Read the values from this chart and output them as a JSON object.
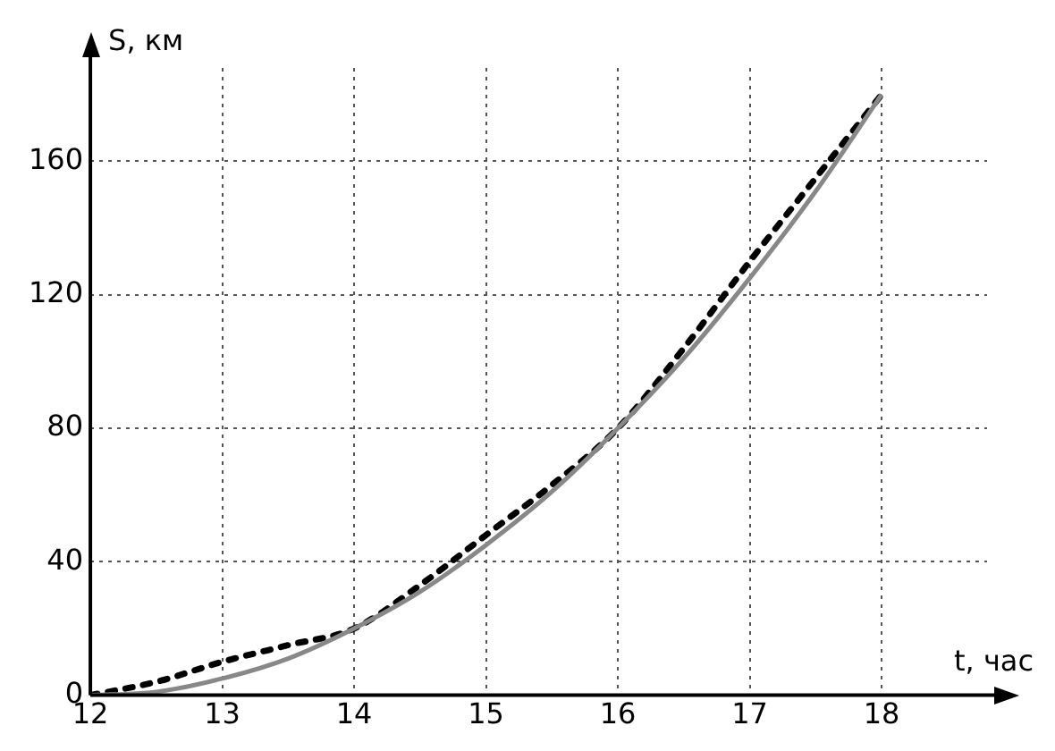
{
  "chart_data": {
    "type": "line",
    "xlabel": "t, час",
    "ylabel": "S, км",
    "x": [
      12,
      12.5,
      13,
      13.5,
      14,
      14.5,
      15,
      15.5,
      16,
      16.5,
      17,
      17.5,
      18
    ],
    "series": [
      {
        "color": "#888888",
        "line_style": "solid",
        "values": [
          0,
          1,
          5,
          11,
          20,
          31,
          45,
          61,
          80,
          101,
          125,
          151,
          180
        ]
      },
      {
        "color": "#000000",
        "line_style": "dotted",
        "values": [
          0,
          4,
          10,
          15,
          20,
          33,
          48,
          63,
          80,
          104,
          130,
          155,
          180
        ]
      }
    ],
    "xlim": [
      12,
      18.8
    ],
    "ylim": [
      0,
      188
    ],
    "xticks": [
      12,
      13,
      14,
      15,
      16,
      17,
      18
    ],
    "yticks": [
      0,
      40,
      80,
      120,
      160
    ],
    "grid": true,
    "marker": "none",
    "legend": false
  }
}
